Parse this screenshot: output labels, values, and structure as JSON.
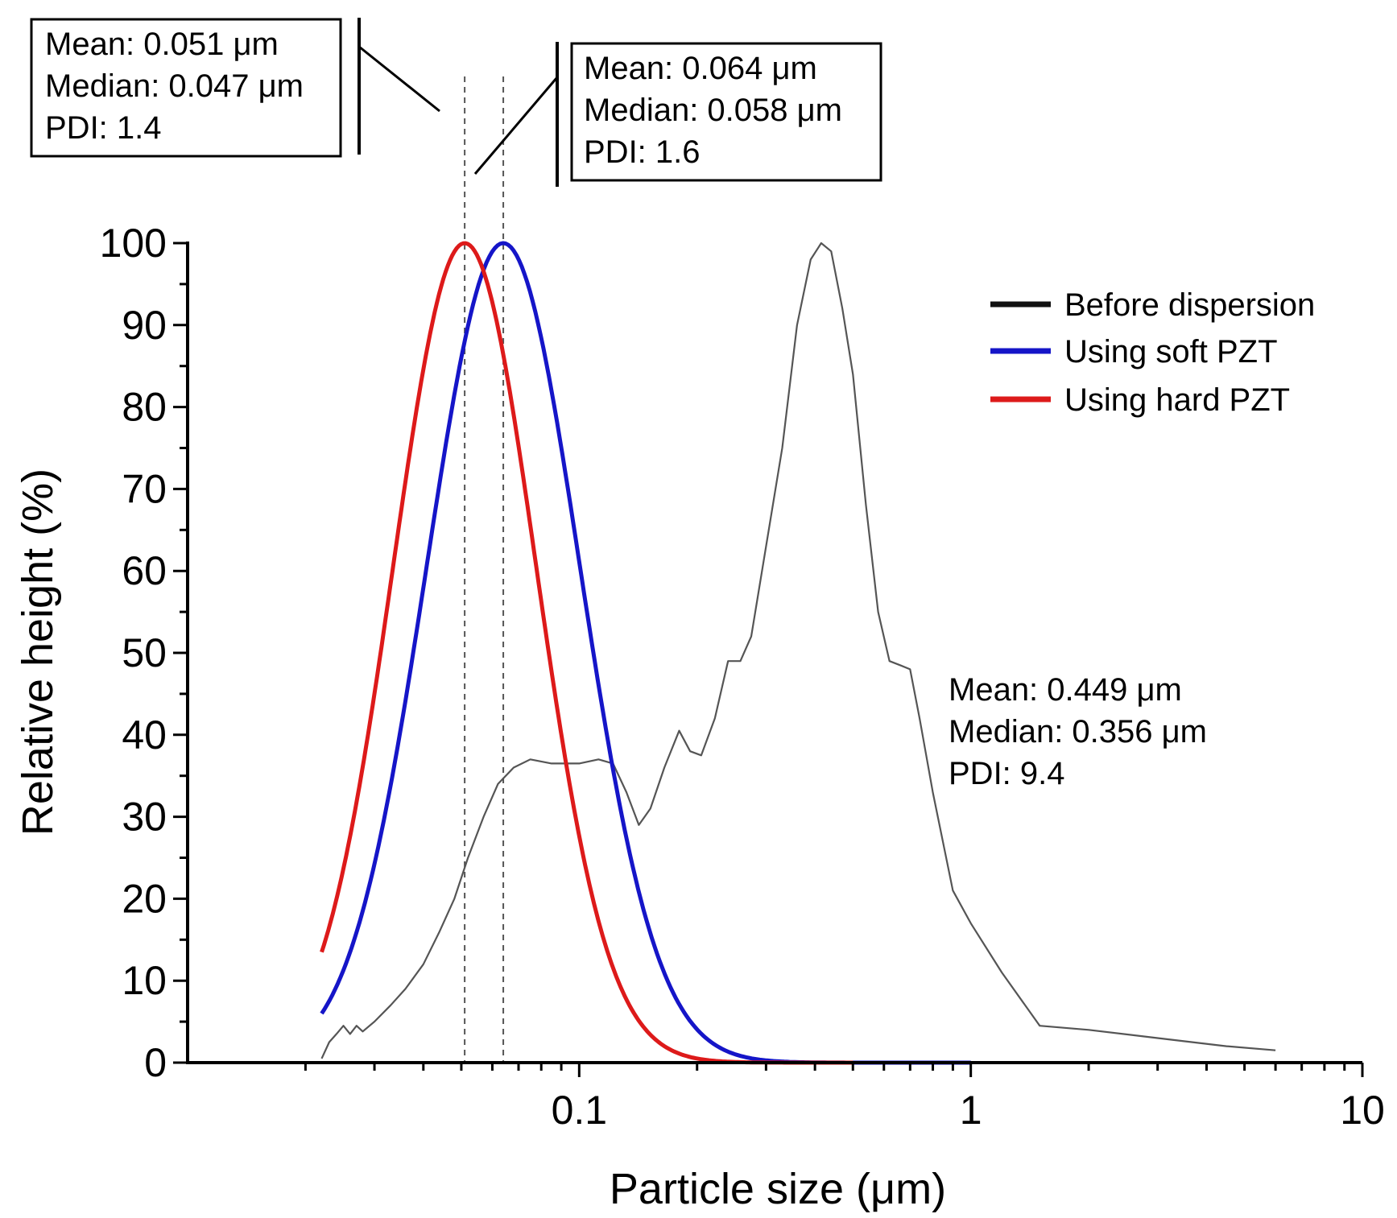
{
  "chart_data": {
    "type": "line",
    "xscale": "log",
    "xlim": [
      0.01,
      10
    ],
    "ylim": [
      0,
      100
    ],
    "xlabel": "Particle size (μm)",
    "ylabel": "Relative height (%)",
    "xticks": [
      {
        "value": 0.1,
        "label": "0.1"
      },
      {
        "value": 1,
        "label": "1"
      },
      {
        "value": 10,
        "label": "10"
      }
    ],
    "yticks": [
      {
        "value": 0,
        "label": "0"
      },
      {
        "value": 10,
        "label": "10"
      },
      {
        "value": 20,
        "label": "20"
      },
      {
        "value": 30,
        "label": "30"
      },
      {
        "value": 40,
        "label": "40"
      },
      {
        "value": 50,
        "label": "50"
      },
      {
        "value": 60,
        "label": "60"
      },
      {
        "value": 70,
        "label": "70"
      },
      {
        "value": 80,
        "label": "80"
      },
      {
        "value": 90,
        "label": "90"
      },
      {
        "value": 100,
        "label": "100"
      }
    ],
    "legend": [
      "Before dispersion",
      "Using soft PZT",
      "Using hard PZT"
    ],
    "series": [
      {
        "name": "Before dispersion",
        "color": "#555555",
        "x": [
          0.022,
          0.023,
          0.024,
          0.025,
          0.026,
          0.027,
          0.028,
          0.03,
          0.033,
          0.036,
          0.04,
          0.044,
          0.048,
          0.052,
          0.057,
          0.062,
          0.068,
          0.075,
          0.085,
          0.1,
          0.112,
          0.122,
          0.132,
          0.142,
          0.152,
          0.165,
          0.18,
          0.192,
          0.205,
          0.222,
          0.24,
          0.258,
          0.275,
          0.3,
          0.33,
          0.36,
          0.39,
          0.415,
          0.44,
          0.47,
          0.5,
          0.54,
          0.58,
          0.62,
          0.66,
          0.7,
          0.74,
          0.8,
          0.9,
          1.0,
          1.2,
          1.5,
          2.0,
          3.0,
          4.5,
          6.0
        ],
        "y": [
          0.5,
          2.5,
          3.5,
          4.5,
          3.5,
          4.5,
          3.8,
          5,
          7,
          9,
          12,
          16,
          20,
          25,
          30,
          34,
          36,
          37,
          36.5,
          36.5,
          37,
          36.5,
          33,
          29,
          31,
          36,
          40.5,
          38,
          37.5,
          42,
          49,
          49,
          52,
          63,
          75,
          90,
          98,
          100,
          99,
          92,
          84,
          68,
          55,
          49,
          48.5,
          48,
          42,
          33,
          21,
          17,
          11,
          4.5,
          4,
          3,
          2,
          1.5
        ]
      },
      {
        "name": "Using soft PZT",
        "color": "#1515c8",
        "mean": 0.064,
        "sigma_ln": 0.45,
        "x_start": 0.022,
        "x_end": 1.0
      },
      {
        "name": "Using hard PZT",
        "color": "#dd1a1a",
        "mean": 0.051,
        "sigma_ln": 0.42,
        "x_start": 0.022,
        "x_end": 0.5
      }
    ],
    "reference_lines": [
      0.051,
      0.064
    ],
    "annotations": {
      "hard": {
        "line1": "Mean: 0.051 μm",
        "line2": "Median: 0.047 μm",
        "line3": "PDI: 1.4"
      },
      "soft": {
        "line1": "Mean: 0.064 μm",
        "line2": "Median: 0.058 μm",
        "line3": "PDI: 1.6"
      },
      "before": {
        "line1": "Mean: 0.449 μm",
        "line2": "Median: 0.356 μm",
        "line3": "PDI: 9.4"
      }
    }
  },
  "colors": {
    "axis": "#000000",
    "before": "#555555",
    "soft": "#1515c8",
    "hard": "#dd1a1a",
    "legend_before": "#111111"
  }
}
